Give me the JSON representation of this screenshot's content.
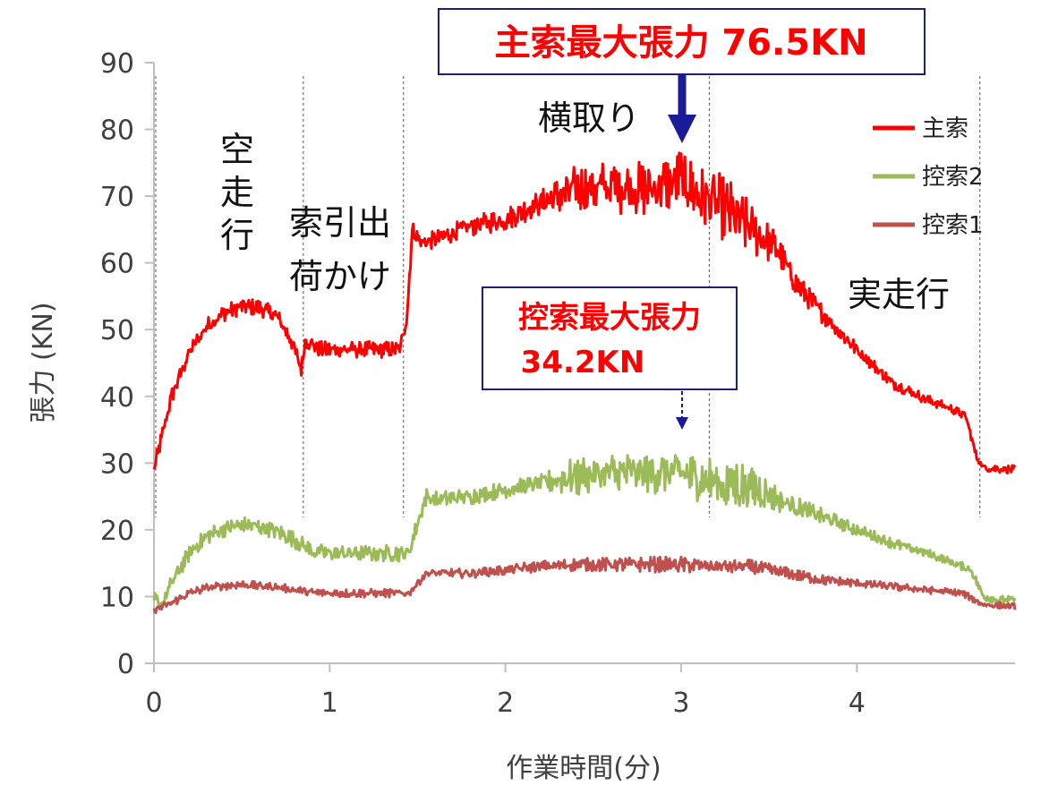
{
  "chart_data": {
    "type": "line",
    "xlabel": "作業時間(分)",
    "ylabel": "張力 (KN)",
    "xlim": [
      0,
      4.9
    ],
    "ylim": [
      0,
      90
    ],
    "x_ticks": [
      "0",
      "1",
      "2",
      "3",
      "4"
    ],
    "y_ticks": [
      "0",
      "10",
      "20",
      "30",
      "40",
      "50",
      "60",
      "70",
      "80",
      "90"
    ],
    "legend_position": "right",
    "series": [
      {
        "name": "主索",
        "color": "#ff0000",
        "points": [
          [
            0,
            29
          ],
          [
            0.1,
            40
          ],
          [
            0.2,
            46.5
          ],
          [
            0.3,
            50.5
          ],
          [
            0.4,
            52.5
          ],
          [
            0.5,
            53.5
          ],
          [
            0.6,
            53.3
          ],
          [
            0.7,
            52
          ],
          [
            0.78,
            48.5
          ],
          [
            0.84,
            44
          ],
          [
            0.86,
            48.5
          ],
          [
            0.95,
            47
          ],
          [
            1.1,
            47
          ],
          [
            1.25,
            47
          ],
          [
            1.4,
            47
          ],
          [
            1.44,
            52
          ],
          [
            1.47,
            65
          ],
          [
            1.52,
            63
          ],
          [
            1.6,
            63.5
          ],
          [
            1.8,
            65.5
          ],
          [
            2.0,
            66.5
          ],
          [
            2.2,
            69
          ],
          [
            2.4,
            71
          ],
          [
            2.6,
            71.5
          ],
          [
            2.8,
            71
          ],
          [
            2.95,
            72
          ],
          [
            3.0,
            73
          ],
          [
            3.1,
            70
          ],
          [
            3.2,
            69
          ],
          [
            3.3,
            67
          ],
          [
            3.45,
            64
          ],
          [
            3.55,
            62
          ],
          [
            3.65,
            57
          ],
          [
            3.8,
            52.5
          ],
          [
            4.0,
            47
          ],
          [
            4.2,
            42
          ],
          [
            4.4,
            39.5
          ],
          [
            4.55,
            38
          ],
          [
            4.62,
            37
          ],
          [
            4.68,
            31
          ],
          [
            4.72,
            29.3
          ],
          [
            4.9,
            29
          ]
        ],
        "noise": [
          [
            1.5,
            2
          ],
          [
            2.2,
            3
          ],
          [
            2.4,
            6
          ],
          [
            3.0,
            7
          ],
          [
            3.3,
            8
          ],
          [
            3.6,
            3
          ],
          [
            4.1,
            1.5
          ],
          [
            4.6,
            1
          ]
        ],
        "max": 76.5
      },
      {
        "name": "控索2",
        "color": "#9bbb59",
        "points": [
          [
            0,
            9.5
          ],
          [
            0.05,
            9
          ],
          [
            0.1,
            12
          ],
          [
            0.2,
            16.5
          ],
          [
            0.3,
            19
          ],
          [
            0.4,
            20.2
          ],
          [
            0.5,
            20.7
          ],
          [
            0.6,
            20.5
          ],
          [
            0.7,
            19.8
          ],
          [
            0.8,
            18.5
          ],
          [
            0.9,
            16.8
          ],
          [
            1.0,
            16.5
          ],
          [
            1.2,
            16.5
          ],
          [
            1.45,
            16.5
          ],
          [
            1.5,
            21
          ],
          [
            1.55,
            25
          ],
          [
            1.6,
            24.5
          ],
          [
            1.8,
            25
          ],
          [
            2.0,
            26
          ],
          [
            2.2,
            27
          ],
          [
            2.4,
            28
          ],
          [
            2.6,
            28.5
          ],
          [
            2.8,
            28.5
          ],
          [
            3.0,
            28.5
          ],
          [
            3.2,
            27
          ],
          [
            3.4,
            26.5
          ],
          [
            3.6,
            24
          ],
          [
            3.8,
            22
          ],
          [
            4.0,
            20
          ],
          [
            4.2,
            18
          ],
          [
            4.4,
            16.5
          ],
          [
            4.6,
            14.5
          ],
          [
            4.65,
            14
          ],
          [
            4.72,
            10
          ],
          [
            4.8,
            9.5
          ],
          [
            4.9,
            9.5
          ]
        ],
        "noise": [
          [
            1.55,
            2
          ],
          [
            2.2,
            2
          ],
          [
            2.4,
            5
          ],
          [
            3.0,
            5
          ],
          [
            3.3,
            7
          ],
          [
            3.6,
            2.5
          ],
          [
            4.0,
            1.5
          ],
          [
            4.5,
            1
          ]
        ],
        "max": 34.2
      },
      {
        "name": "控索1",
        "color": "#c0504d",
        "points": [
          [
            0,
            8
          ],
          [
            0.1,
            9
          ],
          [
            0.2,
            10.5
          ],
          [
            0.3,
            11.3
          ],
          [
            0.4,
            11.6
          ],
          [
            0.5,
            11.8
          ],
          [
            0.6,
            11.6
          ],
          [
            0.7,
            11.4
          ],
          [
            0.8,
            11
          ],
          [
            0.9,
            10.6
          ],
          [
            1.0,
            10.5
          ],
          [
            1.2,
            10.5
          ],
          [
            1.45,
            10.5
          ],
          [
            1.5,
            12
          ],
          [
            1.55,
            13.5
          ],
          [
            1.8,
            13.5
          ],
          [
            2.0,
            14
          ],
          [
            2.2,
            14.5
          ],
          [
            2.4,
            14.8
          ],
          [
            2.6,
            14.8
          ],
          [
            2.8,
            14.8
          ],
          [
            3.0,
            14.8
          ],
          [
            3.2,
            14.5
          ],
          [
            3.4,
            14.5
          ],
          [
            3.6,
            13.5
          ],
          [
            3.8,
            12.5
          ],
          [
            4.0,
            12
          ],
          [
            4.2,
            11.5
          ],
          [
            4.4,
            11
          ],
          [
            4.6,
            10.5
          ],
          [
            4.72,
            8.8
          ],
          [
            4.9,
            8.5
          ]
        ],
        "noise": [
          [
            1.55,
            1
          ],
          [
            2.4,
            1.5
          ],
          [
            3.0,
            2
          ],
          [
            3.5,
            1.5
          ],
          [
            4.0,
            1
          ],
          [
            4.6,
            0.8
          ]
        ]
      }
    ],
    "phase_dividers_min": [
      0.01,
      0.85,
      1.42,
      3.16,
      4.7
    ],
    "annotations": {
      "phase_kuusoukou": "空走行",
      "phase_sakuhikidashi_1": "索引出",
      "phase_sakuhikidashi_2": "荷かけ",
      "phase_yokodori": "横取り",
      "phase_jitsusoukou": "実走行",
      "main_max_label": "主索最大張力 76.5KN",
      "sub_max_label_1": "控索最大張力",
      "sub_max_label_2": "34.2KN"
    }
  },
  "colors": {
    "main_red": "#ff0000",
    "green": "#9bbb59",
    "brown_red": "#c0504d",
    "callout_border": "#1f1f7a",
    "arrow_navy": "#1b1b9a"
  }
}
